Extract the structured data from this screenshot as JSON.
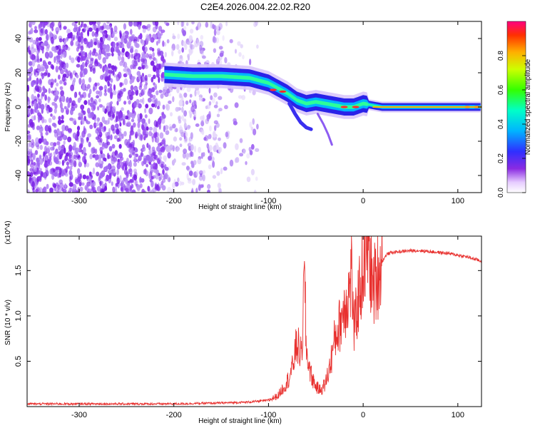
{
  "title": "C2E4.2026.004.22.02.R20",
  "chart_data": [
    {
      "type": "heatmap",
      "xlabel": "Height of straight line (km)",
      "ylabel": "Frequency (Hz)",
      "xlim": [
        -355,
        125
      ],
      "ylim": [
        -50,
        50
      ],
      "xticks": [
        -300,
        -200,
        -100,
        0,
        100
      ],
      "yticks": [
        -40,
        -20,
        0,
        20,
        40
      ],
      "colorbar": {
        "label": "Normalized spectral amplitude",
        "range": [
          0,
          1
        ],
        "ticks": [
          0.0,
          0.2,
          0.4,
          0.6,
          0.8
        ]
      },
      "ridge": {
        "x": [
          -210,
          -180,
          -150,
          -120,
          -100,
          -90,
          -80,
          -70,
          -60,
          -50,
          -40,
          -30,
          -20,
          -10,
          0,
          20,
          60,
          100,
          125
        ],
        "y": [
          19,
          18,
          18,
          17,
          14,
          11,
          8,
          4,
          2,
          3,
          2,
          1,
          0,
          0,
          2,
          0,
          0,
          0,
          0
        ]
      }
    },
    {
      "type": "line",
      "xlabel": "Height of straight line (km)",
      "ylabel": "SNR (10 * v/v)",
      "y_multiplier": "(x10^4)",
      "xlim": [
        -355,
        125
      ],
      "ylim": [
        0,
        1.88
      ],
      "xticks": [
        -300,
        -200,
        -100,
        0,
        100
      ],
      "yticks": [
        0.5,
        1.0,
        1.5
      ],
      "series": [
        {
          "color": "#e8312f",
          "x": [
            -355,
            -300,
            -250,
            -200,
            -150,
            -120,
            -100,
            -90,
            -80,
            -75,
            -70,
            -65,
            -62,
            -60,
            -55,
            -50,
            -45,
            -40,
            -35,
            -30,
            -25,
            -20,
            -15,
            -12,
            -10,
            -5,
            0,
            5,
            10,
            15,
            20,
            25,
            30,
            40,
            50,
            60,
            70,
            80,
            90,
            100,
            110,
            120,
            125
          ],
          "y": [
            0.03,
            0.03,
            0.03,
            0.03,
            0.04,
            0.05,
            0.07,
            0.12,
            0.28,
            0.42,
            0.7,
            0.55,
            1.45,
            0.6,
            0.35,
            0.22,
            0.18,
            0.25,
            0.45,
            0.75,
            0.9,
            1.1,
            1.25,
            1.5,
            0.8,
            1.2,
            1.55,
            1.85,
            1.3,
            1.45,
            1.6,
            1.68,
            1.7,
            1.71,
            1.72,
            1.72,
            1.71,
            1.7,
            1.69,
            1.67,
            1.65,
            1.62,
            1.6
          ]
        }
      ]
    }
  ]
}
